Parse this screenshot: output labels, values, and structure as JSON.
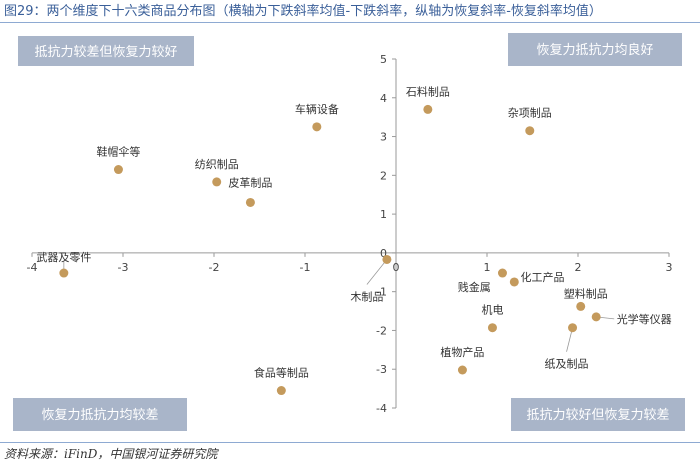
{
  "title": "图29：两个维度下十六类商品分布图（横轴为下跌斜率均值-下跌斜率，纵轴为恢复斜率-恢复斜率均值）",
  "source": "资料来源：iFinD，中国银河证券研究院",
  "colors": {
    "point": "#c49a5c",
    "quadrant_box": "#a9b5c9",
    "quadrant_text": "#ffffff",
    "title": "#3a5f99",
    "axis": "#9a9a9a"
  },
  "quadrants": {
    "top_left": "抵抗力较差但恢复力较好",
    "top_right": "恢复力抵抗力均良好",
    "bottom_left": "恢复力抵抗力均较差",
    "bottom_right": "抵抗力较好但恢复力较差"
  },
  "chart_data": {
    "type": "scatter",
    "title": "图29：两个维度下十六类商品分布图（横轴为下跌斜率均值-下跌斜率，纵轴为恢复斜率-恢复斜率均值）",
    "xlabel": "",
    "ylabel": "",
    "xlim": [
      -4,
      3
    ],
    "ylim": [
      -4,
      5
    ],
    "xticks": [
      -4,
      -3,
      -2,
      -1,
      0,
      1,
      2,
      3
    ],
    "yticks": [
      -4,
      -3,
      -2,
      -1,
      0,
      1,
      2,
      3,
      4,
      5
    ],
    "xtick_labels": [
      "-4",
      "-3",
      "-2",
      "-1",
      "0",
      "1",
      "2",
      "3"
    ],
    "ytick_labels": [
      "-4",
      "-3",
      "-2",
      "-1",
      "0",
      "1",
      "2",
      "3",
      "4",
      "5"
    ],
    "grid": false,
    "points": [
      {
        "label": "石料制品",
        "x": 0.35,
        "y": 3.7
      },
      {
        "label": "杂项制品",
        "x": 1.47,
        "y": 3.15
      },
      {
        "label": "车辆设备",
        "x": -0.87,
        "y": 3.25
      },
      {
        "label": "鞋帽伞等",
        "x": -3.05,
        "y": 2.15
      },
      {
        "label": "纺织制品",
        "x": -1.97,
        "y": 1.83
      },
      {
        "label": "皮革制品",
        "x": -1.6,
        "y": 1.3
      },
      {
        "label": "武器及零件",
        "x": -3.65,
        "y": -0.52
      },
      {
        "label": "木制品",
        "x": -0.1,
        "y": -0.17
      },
      {
        "label": "化工产品",
        "x": 1.17,
        "y": -0.52
      },
      {
        "label": "贱金属",
        "x": 1.3,
        "y": -0.75
      },
      {
        "label": "塑料制品",
        "x": 2.03,
        "y": -1.38
      },
      {
        "label": "光学等仪器",
        "x": 2.2,
        "y": -1.65
      },
      {
        "label": "机电",
        "x": 1.06,
        "y": -1.93
      },
      {
        "label": "纸及制品",
        "x": 1.94,
        "y": -1.93
      },
      {
        "label": "植物产品",
        "x": 0.73,
        "y": -3.02
      },
      {
        "label": "食品等制品",
        "x": -1.26,
        "y": -3.55
      }
    ]
  }
}
